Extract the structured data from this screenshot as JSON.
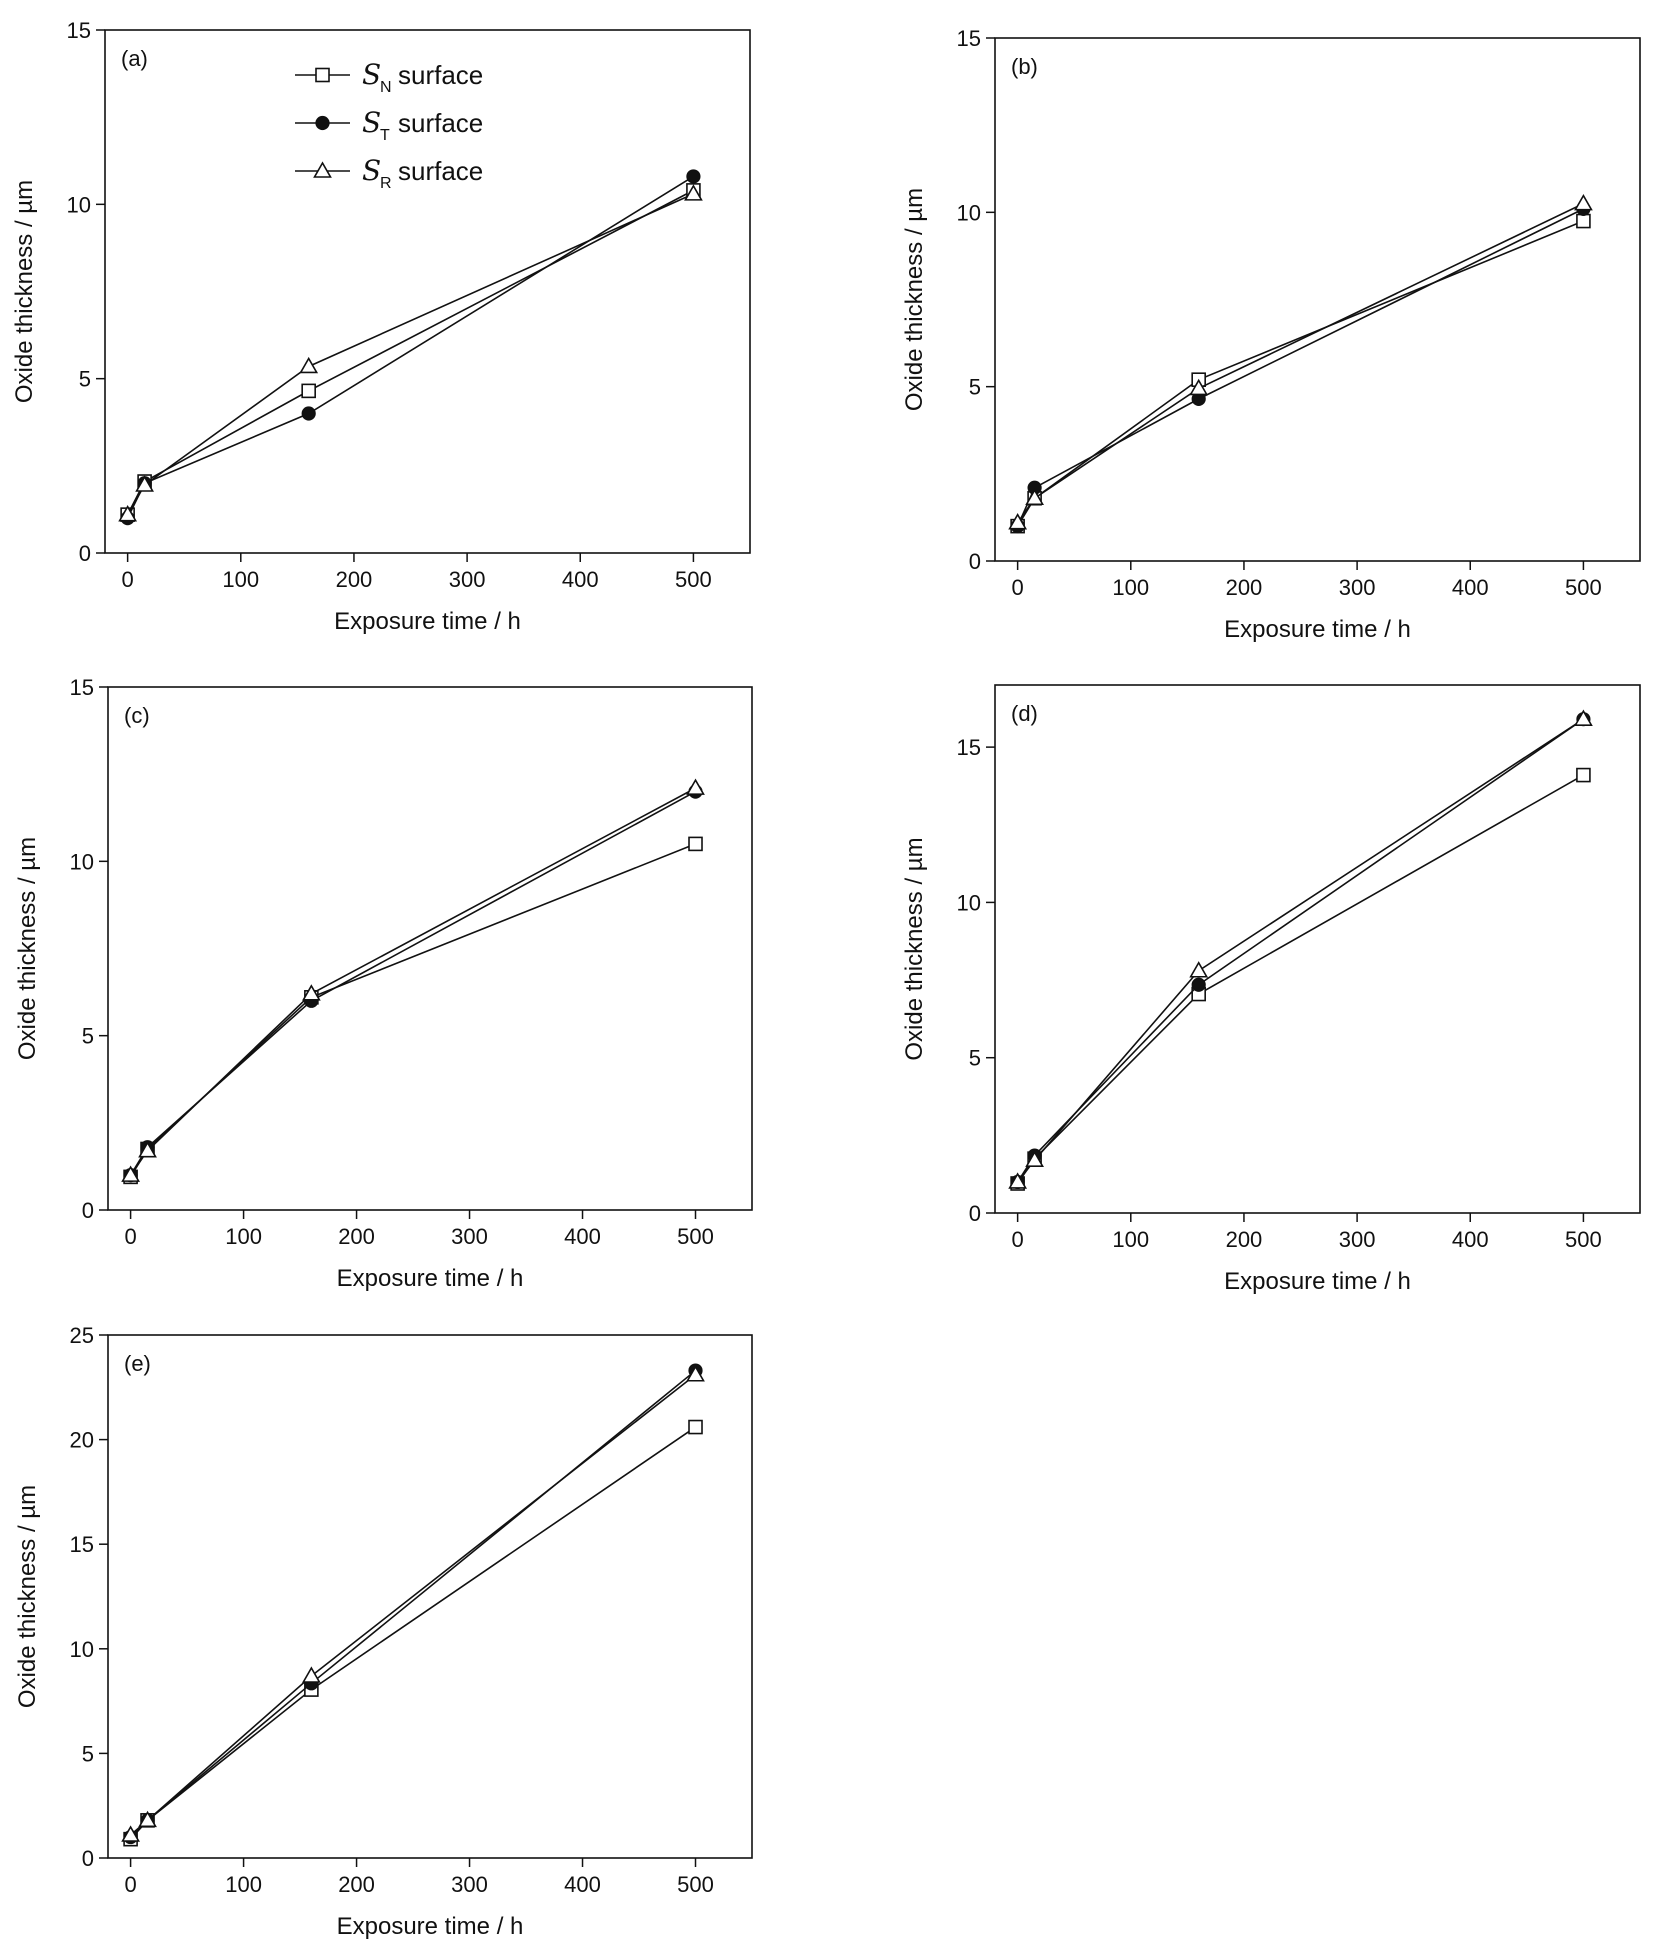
{
  "chart_data": [
    {
      "type": "line",
      "panel_label": "(a)",
      "xlabel": "Exposure time / h",
      "ylabel": "Oxide thickness / µm",
      "xlim": [
        -20,
        550
      ],
      "ylim": [
        0,
        15
      ],
      "xticks": [
        0,
        100,
        200,
        300,
        400,
        500
      ],
      "yticks": [
        0,
        5,
        10,
        15
      ],
      "legend": {
        "placement": "top-left",
        "entries": [
          {
            "symbol": "S",
            "subscript": "N",
            "text": "surface"
          },
          {
            "symbol": "S",
            "subscript": "T",
            "text": "surface"
          },
          {
            "symbol": "S",
            "subscript": "R",
            "text": "surface"
          }
        ]
      },
      "series": [
        {
          "marker": "square-open",
          "x": [
            0,
            15,
            160,
            500
          ],
          "y": [
            1.1,
            2.05,
            4.65,
            10.4
          ]
        },
        {
          "marker": "circle-filled",
          "x": [
            0,
            15,
            160,
            500
          ],
          "y": [
            1.0,
            2.0,
            4.0,
            10.8
          ]
        },
        {
          "marker": "triangle-open",
          "x": [
            0,
            15,
            160,
            500
          ],
          "y": [
            1.1,
            1.95,
            5.35,
            10.3
          ]
        }
      ]
    },
    {
      "type": "line",
      "panel_label": "(b)",
      "xlabel": "Exposure time / h",
      "ylabel": "Oxide thickness / µm",
      "xlim": [
        -20,
        550
      ],
      "ylim": [
        0,
        15
      ],
      "xticks": [
        0,
        100,
        200,
        300,
        400,
        500
      ],
      "yticks": [
        0,
        5,
        10,
        15
      ],
      "series": [
        {
          "marker": "square-open",
          "x": [
            0,
            15,
            160,
            500
          ],
          "y": [
            1.0,
            1.8,
            5.2,
            9.75
          ]
        },
        {
          "marker": "circle-filled",
          "x": [
            0,
            15,
            160,
            500
          ],
          "y": [
            1.0,
            2.1,
            4.65,
            10.1
          ]
        },
        {
          "marker": "triangle-open",
          "x": [
            0,
            15,
            160,
            500
          ],
          "y": [
            1.1,
            1.8,
            4.95,
            10.25
          ]
        }
      ]
    },
    {
      "type": "line",
      "panel_label": "(c)",
      "xlabel": "Exposure time / h",
      "ylabel": "Oxide thickness / µm",
      "xlim": [
        -20,
        550
      ],
      "ylim": [
        0,
        15
      ],
      "xticks": [
        0,
        100,
        200,
        300,
        400,
        500
      ],
      "yticks": [
        0,
        5,
        10,
        15
      ],
      "series": [
        {
          "marker": "square-open",
          "x": [
            0,
            15,
            160,
            500
          ],
          "y": [
            0.95,
            1.75,
            6.1,
            10.5
          ]
        },
        {
          "marker": "circle-filled",
          "x": [
            0,
            15,
            160,
            500
          ],
          "y": [
            1.0,
            1.8,
            6.0,
            12.0
          ]
        },
        {
          "marker": "triangle-open",
          "x": [
            0,
            15,
            160,
            500
          ],
          "y": [
            1.0,
            1.7,
            6.2,
            12.1
          ]
        }
      ]
    },
    {
      "type": "line",
      "panel_label": "(d)",
      "xlabel": "Exposure time / h",
      "ylabel": "Oxide thickness / µm",
      "xlim": [
        -20,
        550
      ],
      "ylim": [
        0,
        17
      ],
      "xticks": [
        0,
        100,
        200,
        300,
        400,
        500
      ],
      "yticks": [
        0,
        5,
        10,
        15
      ],
      "series": [
        {
          "marker": "square-open",
          "x": [
            0,
            15,
            160,
            500
          ],
          "y": [
            0.95,
            1.75,
            7.05,
            14.1
          ]
        },
        {
          "marker": "circle-filled",
          "x": [
            0,
            15,
            160,
            500
          ],
          "y": [
            1.0,
            1.85,
            7.35,
            15.9
          ]
        },
        {
          "marker": "triangle-open",
          "x": [
            0,
            15,
            160,
            500
          ],
          "y": [
            1.0,
            1.7,
            7.8,
            15.9
          ]
        }
      ]
    },
    {
      "type": "line",
      "panel_label": "(e)",
      "xlabel": "Exposure time / h",
      "ylabel": "Oxide thickness / µm",
      "xlim": [
        -20,
        550
      ],
      "ylim": [
        0,
        25
      ],
      "xticks": [
        0,
        100,
        200,
        300,
        400,
        500
      ],
      "yticks": [
        0,
        5,
        10,
        15,
        20,
        25
      ],
      "series": [
        {
          "marker": "square-open",
          "x": [
            0,
            15,
            160,
            500
          ],
          "y": [
            0.9,
            1.8,
            8.05,
            20.6
          ]
        },
        {
          "marker": "circle-filled",
          "x": [
            0,
            15,
            160,
            500
          ],
          "y": [
            1.0,
            1.8,
            8.35,
            23.3
          ]
        },
        {
          "marker": "triangle-open",
          "x": [
            0,
            15,
            160,
            500
          ],
          "y": [
            1.1,
            1.8,
            8.7,
            23.1
          ]
        }
      ]
    }
  ]
}
